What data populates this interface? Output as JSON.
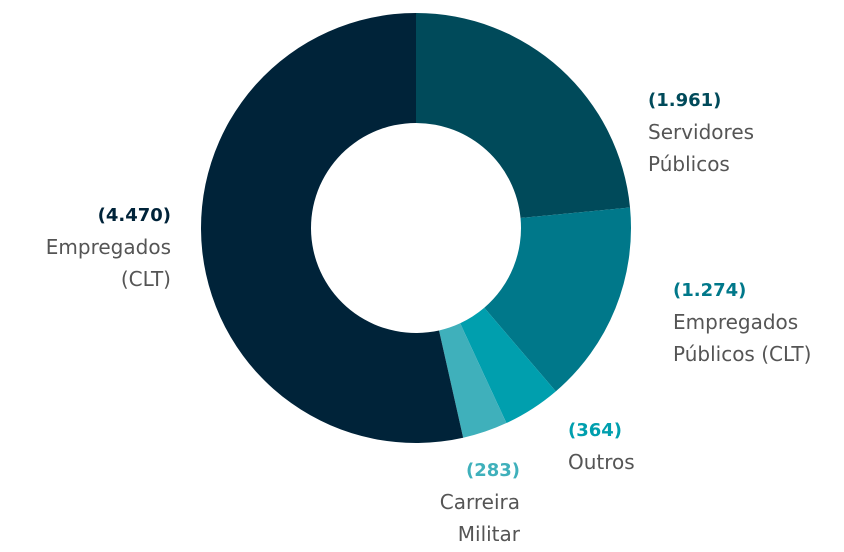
{
  "chart_data": {
    "type": "donut",
    "categories": [
      "Servidores Públicos",
      "Empregados Públicos (CLT)",
      "Outros",
      "Carreira Militar",
      "Empregados (CLT)"
    ],
    "values": [
      1961,
      1274,
      364,
      283,
      4470
    ],
    "value_labels": [
      "(1.961)",
      "(1.274)",
      "(364)",
      "(283)",
      "(4.470)"
    ],
    "colors": [
      "#004a5a",
      "#00788a",
      "#009fae",
      "#3fb0bb",
      "#002339"
    ]
  }
}
